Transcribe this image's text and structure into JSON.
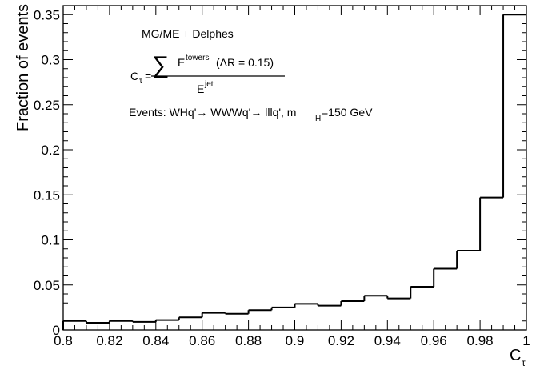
{
  "chart_data": {
    "type": "histogram",
    "title": "",
    "xlabel": "C",
    "xlabel_subscript": "τ",
    "ylabel": "Fraction of events",
    "xlim": [
      0.8,
      1.0
    ],
    "ylim": [
      0,
      0.36
    ],
    "grid": false,
    "x_tick_labels": [
      "0.8",
      "0.82",
      "0.84",
      "0.86",
      "0.88",
      "0.9",
      "0.92",
      "0.94",
      "0.96",
      "0.98",
      "1"
    ],
    "y_tick_labels": [
      "0",
      "0.05",
      "0.1",
      "0.15",
      "0.2",
      "0.25",
      "0.3",
      "0.35"
    ],
    "bin_edges": [
      0.8,
      0.81,
      0.82,
      0.83,
      0.84,
      0.85,
      0.86,
      0.87,
      0.88,
      0.89,
      0.9,
      0.91,
      0.92,
      0.93,
      0.94,
      0.95,
      0.96,
      0.97,
      0.98,
      0.99,
      1.0
    ],
    "values": [
      0.01,
      0.008,
      0.01,
      0.009,
      0.011,
      0.014,
      0.019,
      0.018,
      0.022,
      0.025,
      0.029,
      0.027,
      0.032,
      0.038,
      0.035,
      0.048,
      0.068,
      0.088,
      0.147,
      0.35
    ],
    "annotations": {
      "generator": "MG/ME + Delphes",
      "formula_lhs": "C",
      "formula_lhs_sub": "τ",
      "formula_equals": "=",
      "formula_sum": "∑",
      "numerator_base": "E",
      "numerator_sup": "towers",
      "numerator_cond": "(ΔR = 0.15)",
      "denominator_base": "E",
      "denominator_sup": "jet",
      "events_text": "Events: WHq'→ WWWq'→ lllq', m",
      "events_sub": "H",
      "events_tail": "=150 GeV"
    }
  }
}
